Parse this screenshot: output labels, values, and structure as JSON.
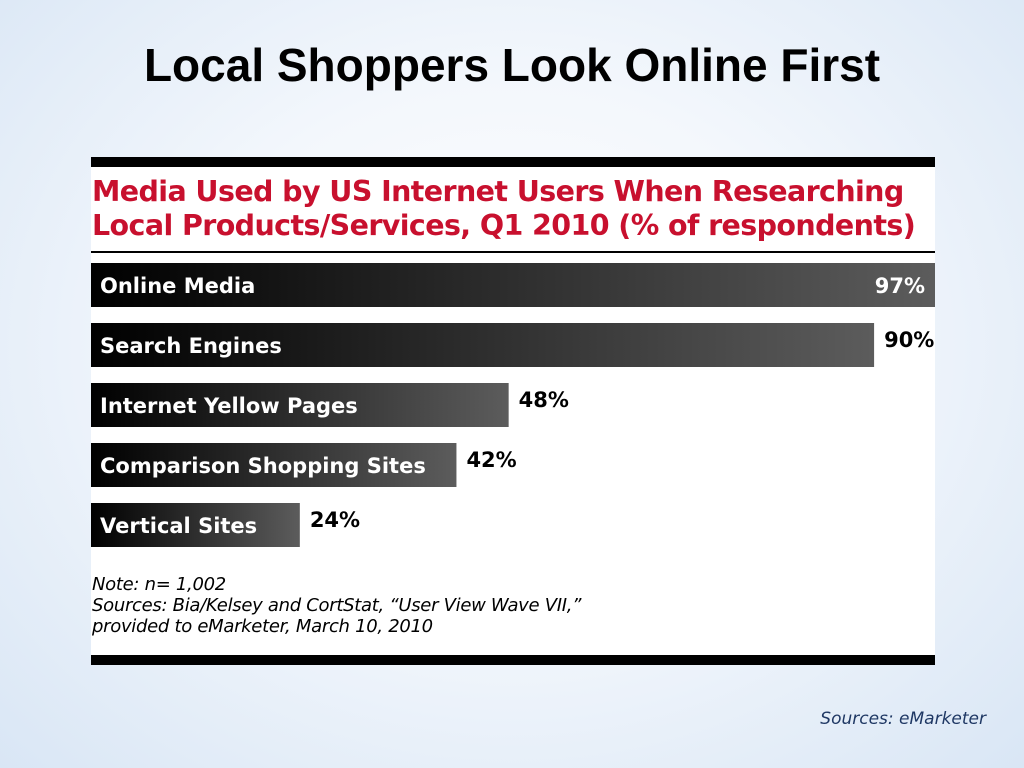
{
  "slide": {
    "title": "Local Shoppers Look Online First",
    "source": "Sources: eMarketer"
  },
  "chart_data": {
    "type": "bar",
    "orientation": "horizontal",
    "title_lines": [
      "Media Used by US Internet Users When Researching",
      "Local Products/Services, Q1 2010 (% of respondents)"
    ],
    "categories": [
      "Online Media",
      "Search Engines",
      "Internet Yellow Pages",
      "Comparison Shopping Sites",
      "Vertical Sites"
    ],
    "values": [
      97,
      90,
      48,
      42,
      24
    ],
    "value_labels": [
      "97%",
      "90%",
      "48%",
      "42%",
      "24%"
    ],
    "xlim": [
      0,
      97
    ],
    "grid": false,
    "legend": "none",
    "colors": {
      "bar_dark": "#000000",
      "bar_light": "#5c5c5c",
      "title": "#c8102e"
    },
    "notes": [
      "Note: n= 1,002",
      "Sources: Bia/Kelsey and CortStat, “User View Wave VII,”",
      "provided to eMarketer, March 10, 2010"
    ]
  }
}
